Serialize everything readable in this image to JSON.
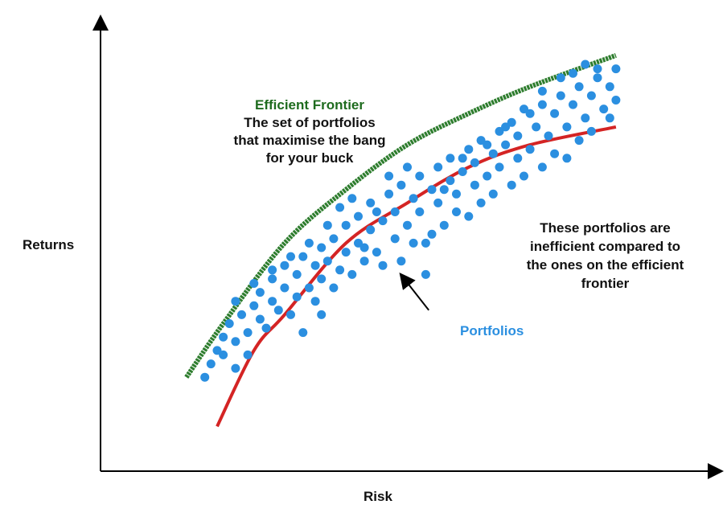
{
  "chart_data": {
    "type": "scatter",
    "xlabel": "Risk",
    "ylabel": "Returns",
    "grid": false,
    "ticks": false,
    "xlim": [
      0,
      100
    ],
    "ylim": [
      0,
      100
    ],
    "efficient_frontier": {
      "label": "Efficient Frontier",
      "description": [
        "The set of portfolios",
        "that maximise the bang",
        "for your buck"
      ],
      "color": "#2e7d2e",
      "points": [
        [
          14,
          21
        ],
        [
          20,
          33
        ],
        [
          30,
          51
        ],
        [
          40,
          63
        ],
        [
          50,
          73
        ],
        [
          60,
          80
        ],
        [
          70,
          86
        ],
        [
          84,
          93
        ]
      ]
    },
    "inefficient_curve": {
      "color": "#d42424",
      "points": [
        [
          19,
          10
        ],
        [
          25,
          27
        ],
        [
          30,
          35
        ],
        [
          40,
          51
        ],
        [
          50,
          60
        ],
        [
          60,
          68
        ],
        [
          70,
          73
        ],
        [
          84,
          77
        ]
      ]
    },
    "portfolio_color": "#2b8fe0",
    "portfolios_label": "Portfolios",
    "inefficient_note": [
      "These portfolios are",
      "inefficient compared to",
      "the ones on the efficient",
      "frontier"
    ],
    "arrow": {
      "from": [
        53.5,
        36
      ],
      "to": [
        49.5,
        43
      ]
    },
    "points": [
      [
        17,
        21
      ],
      [
        18,
        24
      ],
      [
        19,
        27
      ],
      [
        20,
        26
      ],
      [
        20,
        30
      ],
      [
        21,
        33
      ],
      [
        22,
        29
      ],
      [
        23,
        35
      ],
      [
        24,
        31
      ],
      [
        25,
        37
      ],
      [
        26,
        34
      ],
      [
        26,
        40
      ],
      [
        27,
        32
      ],
      [
        28,
        38
      ],
      [
        28,
        43
      ],
      [
        29,
        36
      ],
      [
        30,
        41
      ],
      [
        30,
        46
      ],
      [
        31,
        35
      ],
      [
        32,
        39
      ],
      [
        32,
        44
      ],
      [
        33,
        48
      ],
      [
        34,
        41
      ],
      [
        35,
        46
      ],
      [
        35,
        38
      ],
      [
        36,
        50
      ],
      [
        36,
        43
      ],
      [
        37,
        47
      ],
      [
        38,
        52
      ],
      [
        38,
        41
      ],
      [
        39,
        45
      ],
      [
        40,
        55
      ],
      [
        40,
        49
      ],
      [
        41,
        44
      ],
      [
        42,
        51
      ],
      [
        42,
        57
      ],
      [
        43,
        47
      ],
      [
        44,
        54
      ],
      [
        44,
        60
      ],
      [
        45,
        49
      ],
      [
        46,
        56
      ],
      [
        46,
        46
      ],
      [
        47,
        62
      ],
      [
        48,
        52
      ],
      [
        48,
        58
      ],
      [
        49,
        64
      ],
      [
        49,
        47
      ],
      [
        50,
        55
      ],
      [
        51,
        61
      ],
      [
        51,
        51
      ],
      [
        52,
        66
      ],
      [
        52,
        58
      ],
      [
        53,
        44
      ],
      [
        54,
        63
      ],
      [
        54,
        53
      ],
      [
        55,
        68
      ],
      [
        55,
        60
      ],
      [
        56,
        55
      ],
      [
        57,
        65
      ],
      [
        57,
        70
      ],
      [
        58,
        58
      ],
      [
        58,
        62
      ],
      [
        59,
        67
      ],
      [
        60,
        72
      ],
      [
        60,
        57
      ],
      [
        61,
        64
      ],
      [
        61,
        69
      ],
      [
        62,
        74
      ],
      [
        62,
        60
      ],
      [
        63,
        66
      ],
      [
        64,
        71
      ],
      [
        64,
        62
      ],
      [
        65,
        76
      ],
      [
        65,
        68
      ],
      [
        66,
        73
      ],
      [
        67,
        64
      ],
      [
        67,
        78
      ],
      [
        68,
        70
      ],
      [
        68,
        75
      ],
      [
        69,
        66
      ],
      [
        70,
        80
      ],
      [
        70,
        72
      ],
      [
        71,
        77
      ],
      [
        72,
        68
      ],
      [
        72,
        82
      ],
      [
        73,
        75
      ],
      [
        74,
        80
      ],
      [
        74,
        71
      ],
      [
        75,
        84
      ],
      [
        76,
        77
      ],
      [
        76,
        70
      ],
      [
        77,
        82
      ],
      [
        78,
        86
      ],
      [
        78,
        74
      ],
      [
        79,
        79
      ],
      [
        80,
        84
      ],
      [
        80,
        76
      ],
      [
        81,
        88
      ],
      [
        82,
        81
      ],
      [
        83,
        86
      ],
      [
        83,
        79
      ],
      [
        84,
        90
      ],
      [
        84,
        83
      ],
      [
        43,
        50
      ],
      [
        45,
        58
      ],
      [
        53,
        51
      ],
      [
        56,
        63
      ],
      [
        59,
        70
      ],
      [
        63,
        73
      ],
      [
        66,
        77
      ],
      [
        69,
        81
      ],
      [
        72,
        85
      ],
      [
        75,
        88
      ],
      [
        77,
        89
      ],
      [
        79,
        91
      ],
      [
        81,
        90
      ],
      [
        37,
        55
      ],
      [
        39,
        59
      ],
      [
        41,
        61
      ],
      [
        47,
        66
      ],
      [
        50,
        68
      ],
      [
        34,
        51
      ],
      [
        31,
        48
      ],
      [
        28,
        45
      ],
      [
        25,
        42
      ],
      [
        22,
        38
      ],
      [
        33,
        31
      ],
      [
        36,
        35
      ],
      [
        22,
        23
      ],
      [
        24,
        26
      ]
    ]
  }
}
